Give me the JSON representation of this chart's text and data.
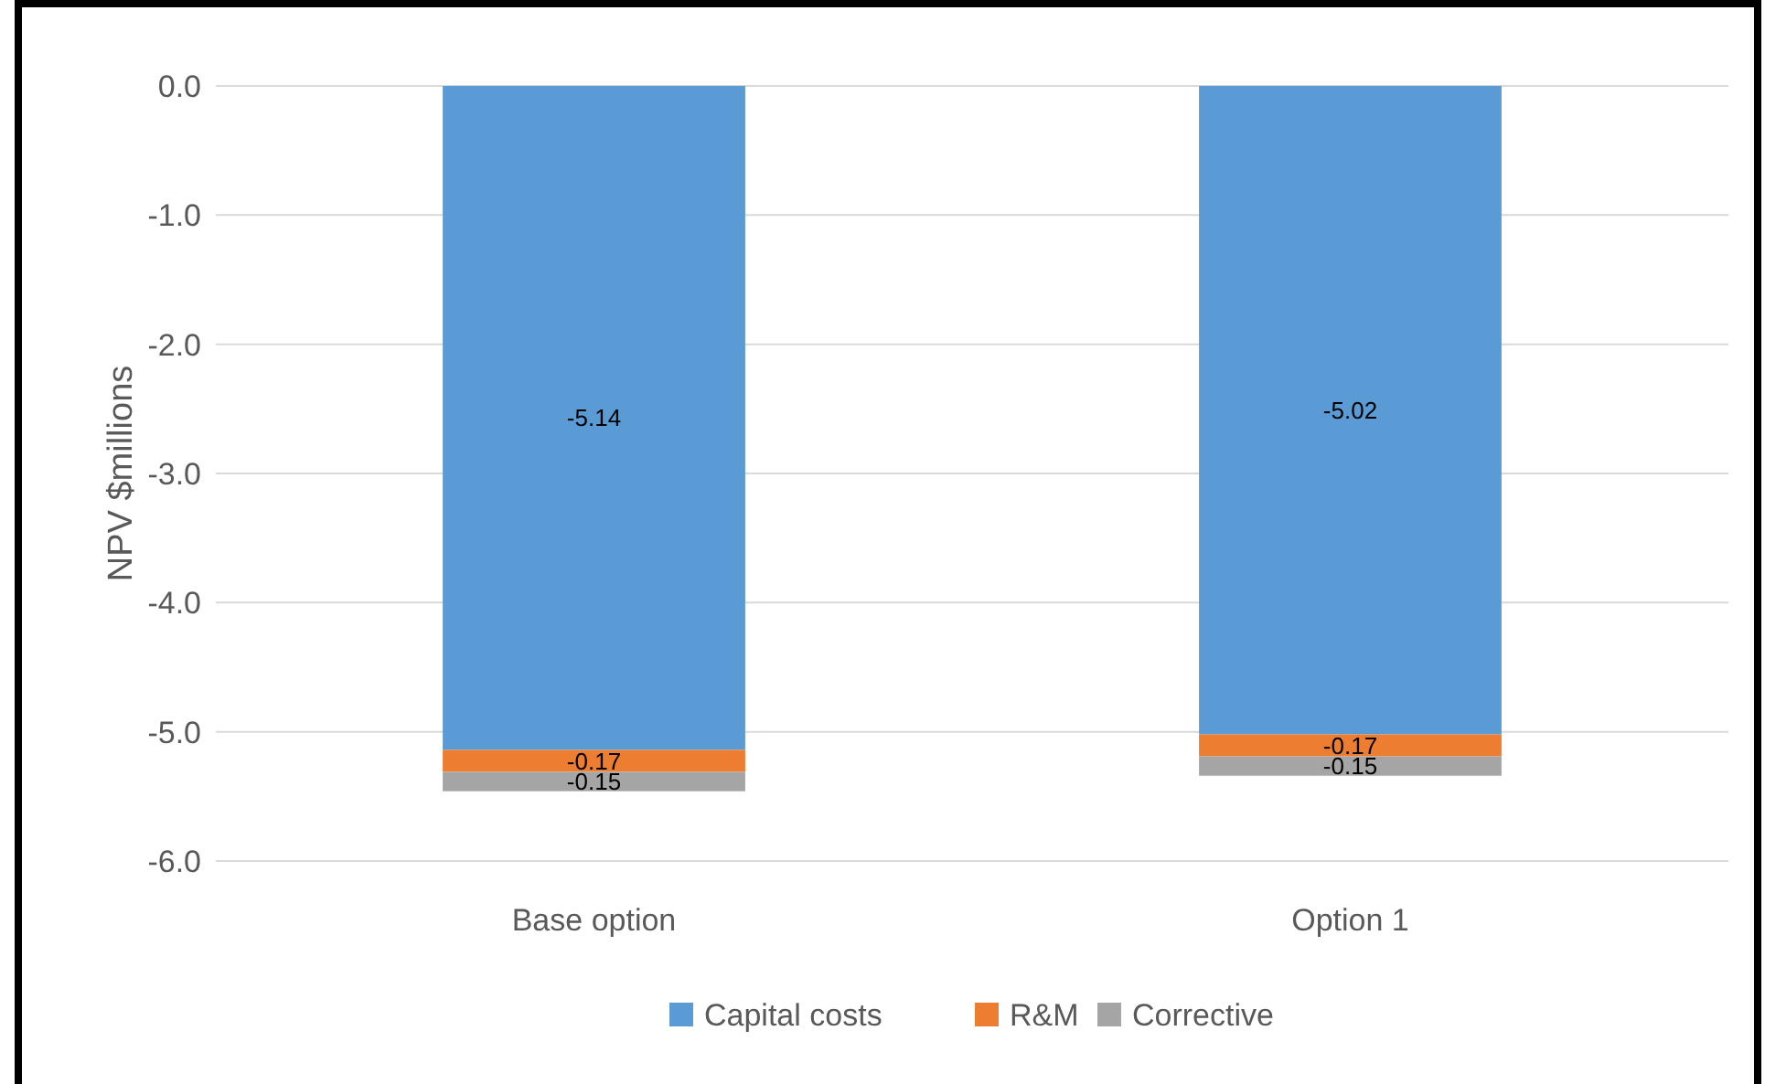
{
  "chart_data": {
    "type": "bar",
    "stacked": true,
    "ylabel": "NPV $millions",
    "categories": [
      "Base option",
      "Option 1"
    ],
    "series": [
      {
        "name": "Capital costs",
        "color": "#5b9bd5",
        "values": [
          -5.14,
          -5.02
        ]
      },
      {
        "name": "R&M",
        "color": "#ed7d31",
        "values": [
          -0.17,
          -0.17
        ]
      },
      {
        "name": "Corrective",
        "color": "#a5a5a5",
        "values": [
          -0.15,
          -0.15
        ]
      }
    ],
    "ylim": [
      -6,
      0
    ],
    "yticks": [
      {
        "value": 0,
        "label": "0.0"
      },
      {
        "value": -1,
        "label": "-1.0"
      },
      {
        "value": -2,
        "label": "-2.0"
      },
      {
        "value": -3,
        "label": "-3.0"
      },
      {
        "value": -4,
        "label": "-4.0"
      },
      {
        "value": -5,
        "label": "-5.0"
      },
      {
        "value": -6,
        "label": "-6.0"
      }
    ],
    "grid": "y",
    "legend": "bottom",
    "data_labels": true
  }
}
